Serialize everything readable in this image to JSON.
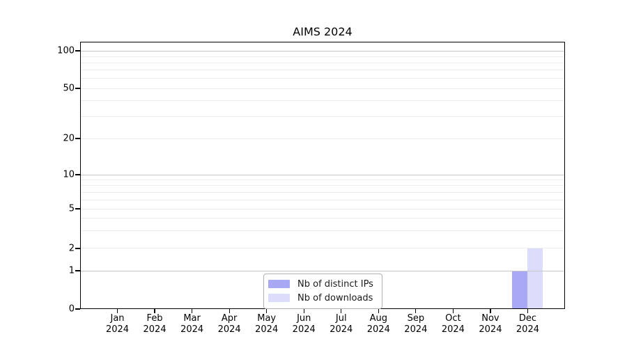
{
  "figure": {
    "title": "AIMS 2024"
  },
  "chart_data": {
    "type": "bar",
    "title": "AIMS 2024",
    "categories": [
      "Jan 2024",
      "Feb 2024",
      "Mar 2024",
      "Apr 2024",
      "May 2024",
      "Jun 2024",
      "Jul 2024",
      "Aug 2024",
      "Sep 2024",
      "Oct 2024",
      "Nov 2024",
      "Dec 2024"
    ],
    "series": [
      {
        "name": "Nb of distinct IPs",
        "color": "#a8a8f7",
        "values": [
          0,
          0,
          0,
          0,
          0,
          0,
          0,
          0,
          0,
          0,
          0,
          1
        ]
      },
      {
        "name": "Nb of downloads",
        "color": "#dcdcfb",
        "values": [
          0,
          0,
          0,
          0,
          0,
          0,
          0,
          0,
          0,
          0,
          0,
          2
        ]
      }
    ],
    "xlabel": "",
    "ylabel": "",
    "yscale": "symlog",
    "yticks": [
      0,
      1,
      2,
      5,
      10,
      20,
      50,
      100
    ],
    "ylim": [
      0,
      118
    ],
    "grid": "horizontal, log minor gridlines",
    "legend_position": "lower center inside plot",
    "colors": {
      "grid_major": "#c7c7c7",
      "grid_minor": "#ededed",
      "axis": "#000000",
      "background": "#ffffff"
    }
  }
}
